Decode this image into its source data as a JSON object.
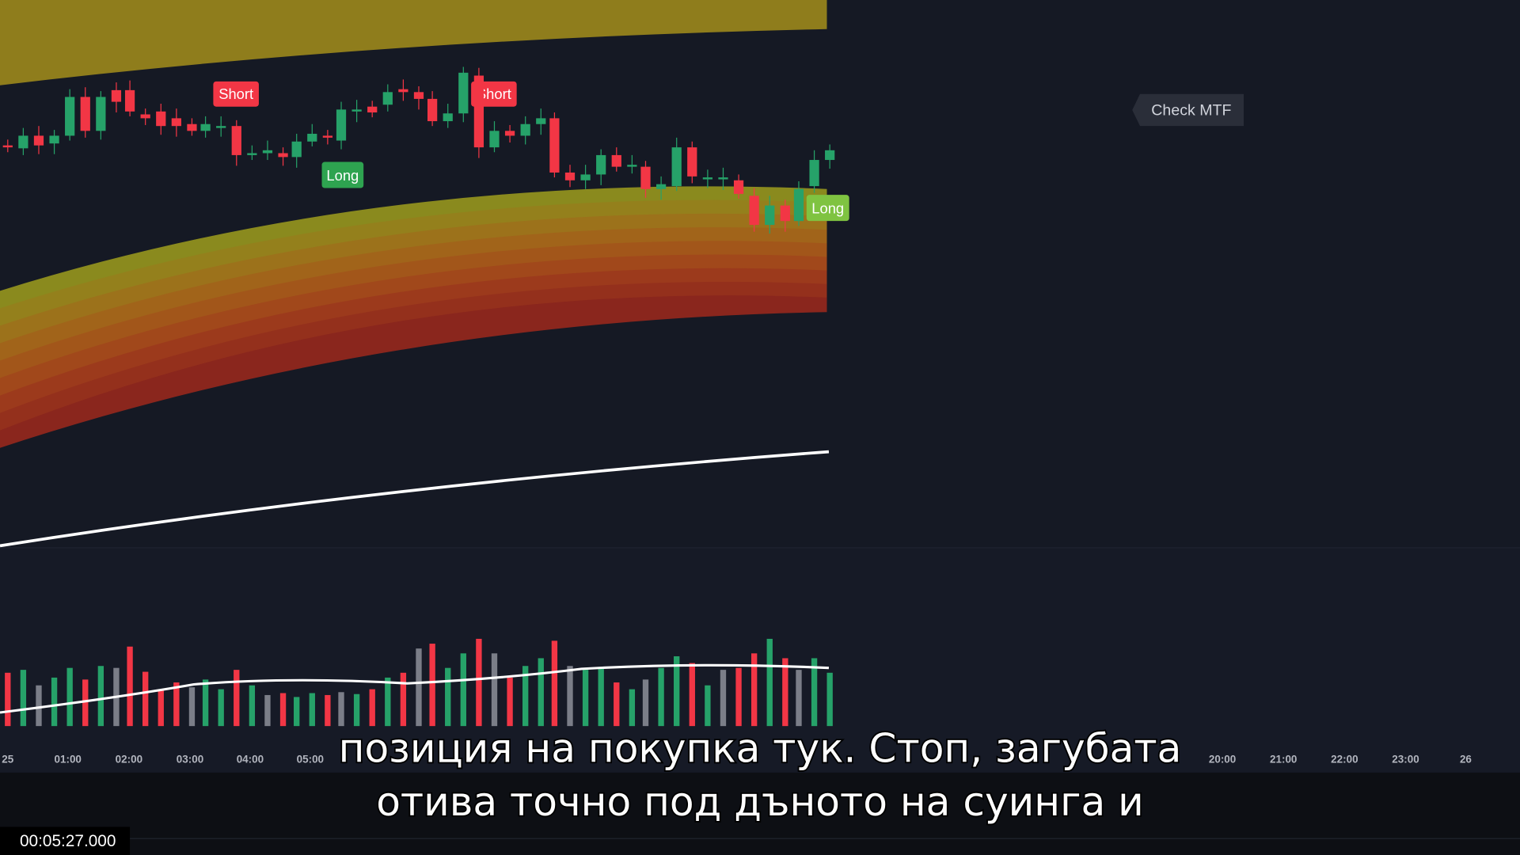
{
  "signals": {
    "short_1": "Short",
    "short_2": "Short",
    "long_1": "Long",
    "long_2": "Long",
    "check": "Check MTF"
  },
  "time_axis": [
    "25",
    "01:00",
    "02:00",
    "03:00",
    "04:00",
    "05:00",
    "20:00",
    "21:00",
    "22:00",
    "23:00",
    "26"
  ],
  "subtitles": [
    "позиция на покупка тук. Стоп, загубата",
    "отива точно под дъното на суинга и"
  ],
  "timestamp": "00:05:27.000"
}
